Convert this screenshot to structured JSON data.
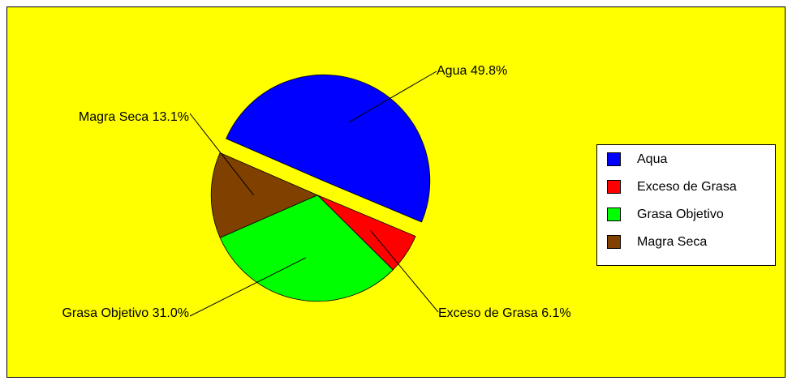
{
  "chart_data": {
    "type": "pie",
    "categories": [
      "Agua",
      "Exceso de Grasa",
      "Grasa Objetivo",
      "Magra Seca"
    ],
    "values": [
      49.8,
      6.1,
      31.0,
      13.1
    ],
    "value_labels": [
      "49.8%",
      "6.1%",
      "31.0%",
      "13.1%"
    ],
    "colors": [
      "#0000ff",
      "#ff0000",
      "#00ff00",
      "#804000"
    ],
    "legend": [
      "Aqua",
      "Exceso de Grasa",
      "Grasa Objetivo",
      "Magra Seca"
    ],
    "background": "#ffff00"
  }
}
